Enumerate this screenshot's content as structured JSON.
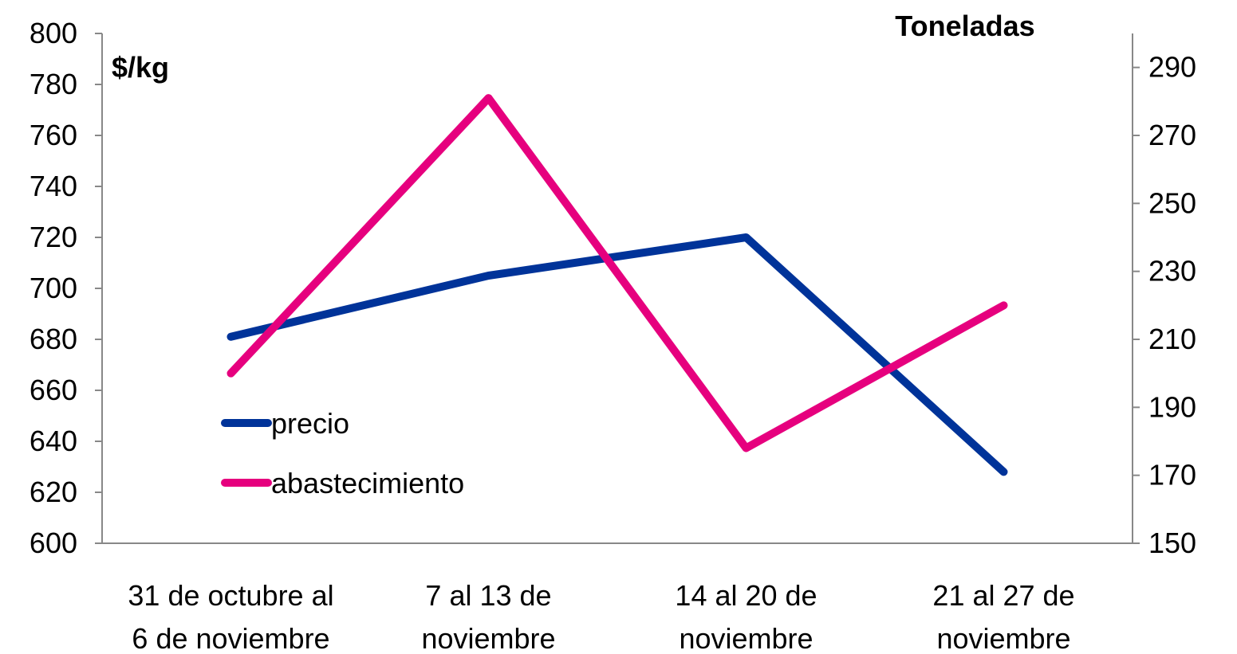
{
  "chart_data": {
    "type": "line",
    "categories": [
      [
        "31 de octubre al",
        "6 de noviembre"
      ],
      [
        "7 al 13 de",
        "noviembre"
      ],
      [
        "14 al 20 de",
        "noviembre"
      ],
      [
        "21 al 27 de",
        "noviembre"
      ]
    ],
    "left_axis": {
      "label": "$/kg",
      "ylim": [
        600,
        800
      ],
      "ticks": [
        "600",
        "620",
        "640",
        "660",
        "680",
        "700",
        "720",
        "740",
        "760",
        "780",
        "800"
      ]
    },
    "right_axis": {
      "label": "Toneladas",
      "ylim": [
        150,
        300
      ],
      "ticks": [
        "150",
        "170",
        "190",
        "210",
        "230",
        "250",
        "270",
        "290"
      ]
    },
    "series": [
      {
        "name": "precio",
        "axis": "left",
        "color": "#003399",
        "values": [
          681,
          705,
          720,
          628
        ]
      },
      {
        "name": "abastecimiento",
        "axis": "right",
        "color": "#E6007E",
        "values": [
          200,
          281,
          178,
          220
        ]
      }
    ],
    "legend": "inside-left",
    "grid": false
  }
}
